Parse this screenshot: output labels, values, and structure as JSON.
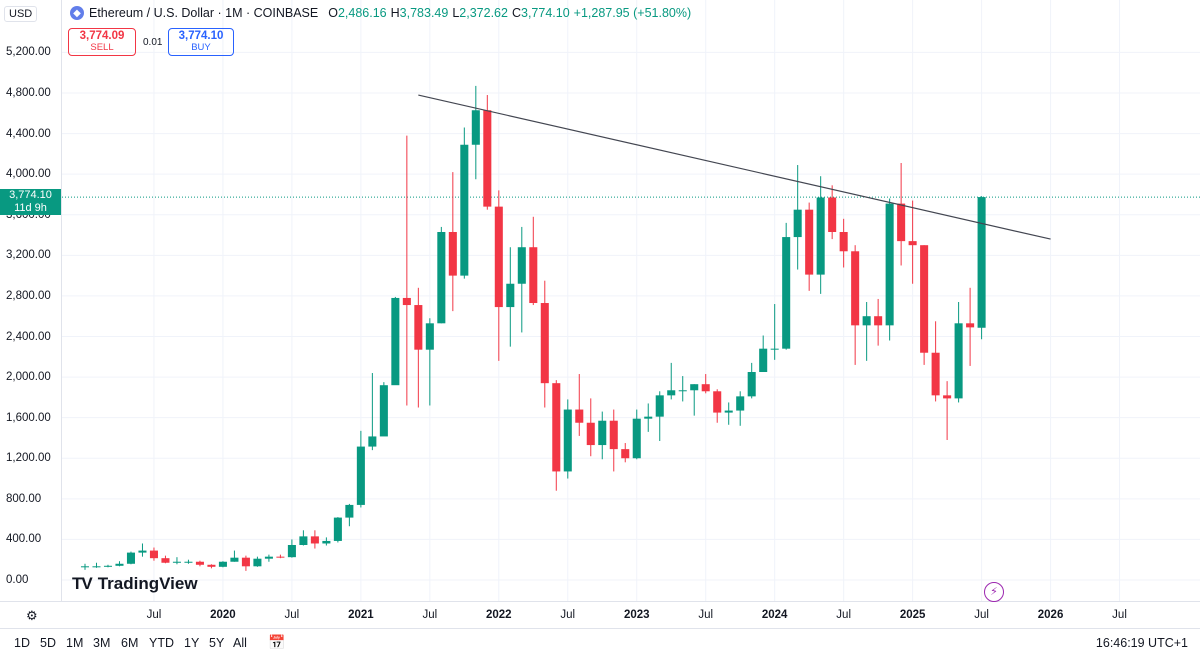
{
  "header": {
    "currency": "USD",
    "symbol": "Ethereum / U.S. Dollar · 1M · COINBASE",
    "open_label": "O",
    "open": "2,486.16",
    "high_label": "H",
    "high": "3,783.49",
    "low_label": "L",
    "low": "2,372.62",
    "close_label": "C",
    "close": "3,774.10",
    "change": "+1,287.95 (+51.80%)"
  },
  "trade": {
    "sell_price": "3,774.09",
    "sell_label": "SELL",
    "spread": "0.01",
    "buy_price": "3,774.10",
    "buy_label": "BUY"
  },
  "price_tag": {
    "price": "3,774.10",
    "countdown": "11d 9h"
  },
  "brand": "TradingView",
  "timeframes": [
    "1D",
    "5D",
    "1M",
    "3M",
    "6M",
    "YTD",
    "1Y",
    "5Y",
    "All"
  ],
  "clock": "16:46:19 UTC+1",
  "colors": {
    "up": "#089981",
    "down": "#f23645",
    "trendline": "#434651"
  },
  "chart_data": {
    "type": "candlestick",
    "interval": "1M",
    "ylim": [
      0,
      5500
    ],
    "yticks": [
      0,
      400,
      800,
      1200,
      1600,
      2000,
      2400,
      2800,
      3200,
      3600,
      4000,
      4400,
      4800,
      5200
    ],
    "ytick_labels": [
      "0.00",
      "400.00",
      "800.00",
      "1,200.00",
      "1,600.00",
      "2,000.00",
      "2,400.00",
      "2,800.00",
      "3,200.00",
      "3,600.00",
      "4,000.00",
      "4,400.00",
      "4,800.00",
      "5,200.00"
    ],
    "xticks": [
      {
        "date": "2019-07",
        "label": "Jul",
        "year": false
      },
      {
        "date": "2020-01",
        "label": "2020",
        "year": true
      },
      {
        "date": "2020-07",
        "label": "Jul",
        "year": false
      },
      {
        "date": "2021-01",
        "label": "2021",
        "year": true
      },
      {
        "date": "2021-07",
        "label": "Jul",
        "year": false
      },
      {
        "date": "2022-01",
        "label": "2022",
        "year": true
      },
      {
        "date": "2022-07",
        "label": "Jul",
        "year": false
      },
      {
        "date": "2023-01",
        "label": "2023",
        "year": true
      },
      {
        "date": "2023-07",
        "label": "Jul",
        "year": false
      },
      {
        "date": "2024-01",
        "label": "2024",
        "year": true
      },
      {
        "date": "2024-07",
        "label": "Jul",
        "year": false
      },
      {
        "date": "2025-01",
        "label": "2025",
        "year": true
      },
      {
        "date": "2025-07",
        "label": "Jul",
        "year": false
      },
      {
        "date": "2026-01",
        "label": "2026",
        "year": true
      },
      {
        "date": "2026-07",
        "label": "Jul",
        "year": false
      }
    ],
    "xlim": [
      "2018-11",
      "2027-02"
    ],
    "last_price": 3774.1,
    "candles": [
      {
        "t": "2019-01",
        "o": 130,
        "h": 160,
        "l": 100,
        "c": 135
      },
      {
        "t": "2019-02",
        "o": 135,
        "h": 170,
        "l": 120,
        "c": 135
      },
      {
        "t": "2019-03",
        "o": 135,
        "h": 150,
        "l": 125,
        "c": 140
      },
      {
        "t": "2019-04",
        "o": 140,
        "h": 185,
        "l": 135,
        "c": 160
      },
      {
        "t": "2019-05",
        "o": 160,
        "h": 280,
        "l": 155,
        "c": 270
      },
      {
        "t": "2019-06",
        "o": 270,
        "h": 360,
        "l": 230,
        "c": 290
      },
      {
        "t": "2019-07",
        "o": 290,
        "h": 320,
        "l": 190,
        "c": 215
      },
      {
        "t": "2019-08",
        "o": 215,
        "h": 240,
        "l": 165,
        "c": 170
      },
      {
        "t": "2019-09",
        "o": 170,
        "h": 225,
        "l": 155,
        "c": 180
      },
      {
        "t": "2019-10",
        "o": 180,
        "h": 200,
        "l": 160,
        "c": 180
      },
      {
        "t": "2019-11",
        "o": 180,
        "h": 190,
        "l": 135,
        "c": 150
      },
      {
        "t": "2019-12",
        "o": 150,
        "h": 155,
        "l": 115,
        "c": 130
      },
      {
        "t": "2020-01",
        "o": 130,
        "h": 185,
        "l": 125,
        "c": 180
      },
      {
        "t": "2020-02",
        "o": 180,
        "h": 290,
        "l": 180,
        "c": 220
      },
      {
        "t": "2020-03",
        "o": 220,
        "h": 240,
        "l": 90,
        "c": 135
      },
      {
        "t": "2020-04",
        "o": 135,
        "h": 230,
        "l": 130,
        "c": 210
      },
      {
        "t": "2020-05",
        "o": 210,
        "h": 250,
        "l": 180,
        "c": 230
      },
      {
        "t": "2020-06",
        "o": 230,
        "h": 250,
        "l": 215,
        "c": 225
      },
      {
        "t": "2020-07",
        "o": 225,
        "h": 400,
        "l": 220,
        "c": 345
      },
      {
        "t": "2020-08",
        "o": 345,
        "h": 490,
        "l": 340,
        "c": 430
      },
      {
        "t": "2020-09",
        "o": 430,
        "h": 490,
        "l": 310,
        "c": 360
      },
      {
        "t": "2020-10",
        "o": 360,
        "h": 420,
        "l": 340,
        "c": 385
      },
      {
        "t": "2020-11",
        "o": 385,
        "h": 620,
        "l": 370,
        "c": 615
      },
      {
        "t": "2020-12",
        "o": 615,
        "h": 750,
        "l": 530,
        "c": 740
      },
      {
        "t": "2021-01",
        "o": 740,
        "h": 1470,
        "l": 715,
        "c": 1315
      },
      {
        "t": "2021-02",
        "o": 1315,
        "h": 2040,
        "l": 1280,
        "c": 1415
      },
      {
        "t": "2021-03",
        "o": 1415,
        "h": 1950,
        "l": 1420,
        "c": 1920
      },
      {
        "t": "2021-04",
        "o": 1920,
        "h": 2790,
        "l": 1930,
        "c": 2780
      },
      {
        "t": "2021-05",
        "o": 2780,
        "h": 4380,
        "l": 1720,
        "c": 2710
      },
      {
        "t": "2021-06",
        "o": 2710,
        "h": 2880,
        "l": 1700,
        "c": 2270
      },
      {
        "t": "2021-07",
        "o": 2270,
        "h": 2580,
        "l": 1720,
        "c": 2530
      },
      {
        "t": "2021-08",
        "o": 2530,
        "h": 3480,
        "l": 2530,
        "c": 3430
      },
      {
        "t": "2021-09",
        "o": 3430,
        "h": 4020,
        "l": 2650,
        "c": 3000
      },
      {
        "t": "2021-10",
        "o": 3000,
        "h": 4460,
        "l": 2970,
        "c": 4290
      },
      {
        "t": "2021-11",
        "o": 4290,
        "h": 4870,
        "l": 3950,
        "c": 4630
      },
      {
        "t": "2021-12",
        "o": 4630,
        "h": 4780,
        "l": 3650,
        "c": 3680
      },
      {
        "t": "2022-01",
        "o": 3680,
        "h": 3840,
        "l": 2160,
        "c": 2690
      },
      {
        "t": "2022-02",
        "o": 2690,
        "h": 3280,
        "l": 2300,
        "c": 2920
      },
      {
        "t": "2022-03",
        "o": 2920,
        "h": 3480,
        "l": 2440,
        "c": 3280
      },
      {
        "t": "2022-04",
        "o": 3280,
        "h": 3580,
        "l": 2710,
        "c": 2730
      },
      {
        "t": "2022-05",
        "o": 2730,
        "h": 2950,
        "l": 1700,
        "c": 1940
      },
      {
        "t": "2022-06",
        "o": 1940,
        "h": 1970,
        "l": 880,
        "c": 1070
      },
      {
        "t": "2022-07",
        "o": 1070,
        "h": 1780,
        "l": 1000,
        "c": 1680
      },
      {
        "t": "2022-08",
        "o": 1680,
        "h": 2030,
        "l": 1420,
        "c": 1550
      },
      {
        "t": "2022-09",
        "o": 1550,
        "h": 1790,
        "l": 1220,
        "c": 1330
      },
      {
        "t": "2022-10",
        "o": 1330,
        "h": 1660,
        "l": 1190,
        "c": 1570
      },
      {
        "t": "2022-11",
        "o": 1570,
        "h": 1680,
        "l": 1070,
        "c": 1290
      },
      {
        "t": "2022-12",
        "o": 1290,
        "h": 1350,
        "l": 1160,
        "c": 1200
      },
      {
        "t": "2023-01",
        "o": 1200,
        "h": 1680,
        "l": 1190,
        "c": 1590
      },
      {
        "t": "2023-02",
        "o": 1590,
        "h": 1740,
        "l": 1460,
        "c": 1610
      },
      {
        "t": "2023-03",
        "o": 1610,
        "h": 1860,
        "l": 1370,
        "c": 1820
      },
      {
        "t": "2023-04",
        "o": 1820,
        "h": 2140,
        "l": 1780,
        "c": 1870
      },
      {
        "t": "2023-05",
        "o": 1870,
        "h": 2010,
        "l": 1760,
        "c": 1870
      },
      {
        "t": "2023-06",
        "o": 1870,
        "h": 1930,
        "l": 1620,
        "c": 1930
      },
      {
        "t": "2023-07",
        "o": 1930,
        "h": 2030,
        "l": 1840,
        "c": 1860
      },
      {
        "t": "2023-08",
        "o": 1860,
        "h": 1880,
        "l": 1550,
        "c": 1650
      },
      {
        "t": "2023-09",
        "o": 1650,
        "h": 1750,
        "l": 1530,
        "c": 1670
      },
      {
        "t": "2023-10",
        "o": 1670,
        "h": 1860,
        "l": 1520,
        "c": 1810
      },
      {
        "t": "2023-11",
        "o": 1810,
        "h": 2140,
        "l": 1790,
        "c": 2050
      },
      {
        "t": "2023-12",
        "o": 2050,
        "h": 2410,
        "l": 2050,
        "c": 2280
      },
      {
        "t": "2024-01",
        "o": 2280,
        "h": 2720,
        "l": 2170,
        "c": 2280
      },
      {
        "t": "2024-02",
        "o": 2280,
        "h": 3520,
        "l": 2270,
        "c": 3380
      },
      {
        "t": "2024-03",
        "o": 3380,
        "h": 4090,
        "l": 3060,
        "c": 3650
      },
      {
        "t": "2024-04",
        "o": 3650,
        "h": 3720,
        "l": 2850,
        "c": 3010
      },
      {
        "t": "2024-05",
        "o": 3010,
        "h": 3980,
        "l": 2820,
        "c": 3770
      },
      {
        "t": "2024-06",
        "o": 3770,
        "h": 3890,
        "l": 3360,
        "c": 3430
      },
      {
        "t": "2024-07",
        "o": 3430,
        "h": 3560,
        "l": 3080,
        "c": 3240
      },
      {
        "t": "2024-08",
        "o": 3240,
        "h": 3300,
        "l": 2120,
        "c": 2510
      },
      {
        "t": "2024-09",
        "o": 2510,
        "h": 2740,
        "l": 2160,
        "c": 2600
      },
      {
        "t": "2024-10",
        "o": 2600,
        "h": 2770,
        "l": 2310,
        "c": 2510
      },
      {
        "t": "2024-11",
        "o": 2510,
        "h": 3760,
        "l": 2360,
        "c": 3710
      },
      {
        "t": "2024-12",
        "o": 3710,
        "h": 4110,
        "l": 3100,
        "c": 3340
      },
      {
        "t": "2025-01",
        "o": 3340,
        "h": 3740,
        "l": 2920,
        "c": 3300
      },
      {
        "t": "2025-02",
        "o": 3300,
        "h": 3300,
        "l": 2120,
        "c": 2240
      },
      {
        "t": "2025-03",
        "o": 2240,
        "h": 2550,
        "l": 1760,
        "c": 1820
      },
      {
        "t": "2025-04",
        "o": 1820,
        "h": 1960,
        "l": 1380,
        "c": 1790
      },
      {
        "t": "2025-05",
        "o": 1790,
        "h": 2740,
        "l": 1750,
        "c": 2530
      },
      {
        "t": "2025-06",
        "o": 2530,
        "h": 2880,
        "l": 2110,
        "c": 2490
      },
      {
        "t": "2025-07",
        "o": 2486.16,
        "h": 3783.49,
        "l": 2372.62,
        "c": 3774.1
      }
    ],
    "trendline": {
      "start": {
        "t": "2021-06",
        "v": 4780
      },
      "end": {
        "t": "2026-01",
        "v": 3360
      }
    }
  }
}
